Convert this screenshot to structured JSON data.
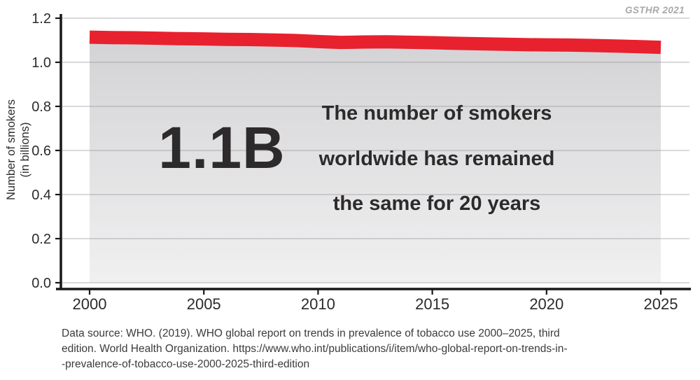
{
  "watermark": "GSTHR 2021",
  "annotation": {
    "big_number": "1.1B",
    "lines": [
      "The number of smokers",
      "worldwide has remained",
      "the same for 20 years"
    ]
  },
  "source": {
    "lines": [
      "Data source: WHO. (2019). WHO global report on trends in prevalence of tobacco use 2000–2025, third",
      "edition. World Health Organization. https://www.who.int/publications/i/item/who-global-report-on-trends-in-",
      "-prevalence-of-tobacco-use-2000-2025-third-edition"
    ]
  },
  "chart_data": {
    "type": "area",
    "title": "",
    "xlabel": "",
    "ylabel": "Number of smokers (in billions)",
    "ylabel_lines": [
      "Number of smokers",
      "(in billions)"
    ],
    "x": [
      2000,
      2001,
      2002,
      2003,
      2004,
      2005,
      2006,
      2007,
      2008,
      2009,
      2010,
      2011,
      2012,
      2013,
      2014,
      2015,
      2016,
      2017,
      2018,
      2019,
      2020,
      2021,
      2022,
      2023,
      2024,
      2025
    ],
    "values": [
      1.114,
      1.112,
      1.111,
      1.109,
      1.107,
      1.106,
      1.104,
      1.103,
      1.101,
      1.099,
      1.094,
      1.09,
      1.092,
      1.093,
      1.091,
      1.089,
      1.086,
      1.084,
      1.082,
      1.08,
      1.079,
      1.078,
      1.076,
      1.074,
      1.071,
      1.068
    ],
    "xlim": [
      2000,
      2025
    ],
    "ylim": [
      0,
      1.2
    ],
    "xticks": [
      2000,
      2005,
      2010,
      2015,
      2020,
      2025
    ],
    "yticks": [
      0.0,
      0.2,
      0.4,
      0.6,
      0.8,
      1.0,
      1.2
    ],
    "grid": "horizontal",
    "legend": "none",
    "colors": {
      "line": "#e8212f",
      "area_top": "#d3d3d5",
      "area_bottom": "#f0f0f1",
      "grid": "#9a9aa0",
      "axis": "#1a1717",
      "tick_text": "#2d2a2b"
    }
  }
}
